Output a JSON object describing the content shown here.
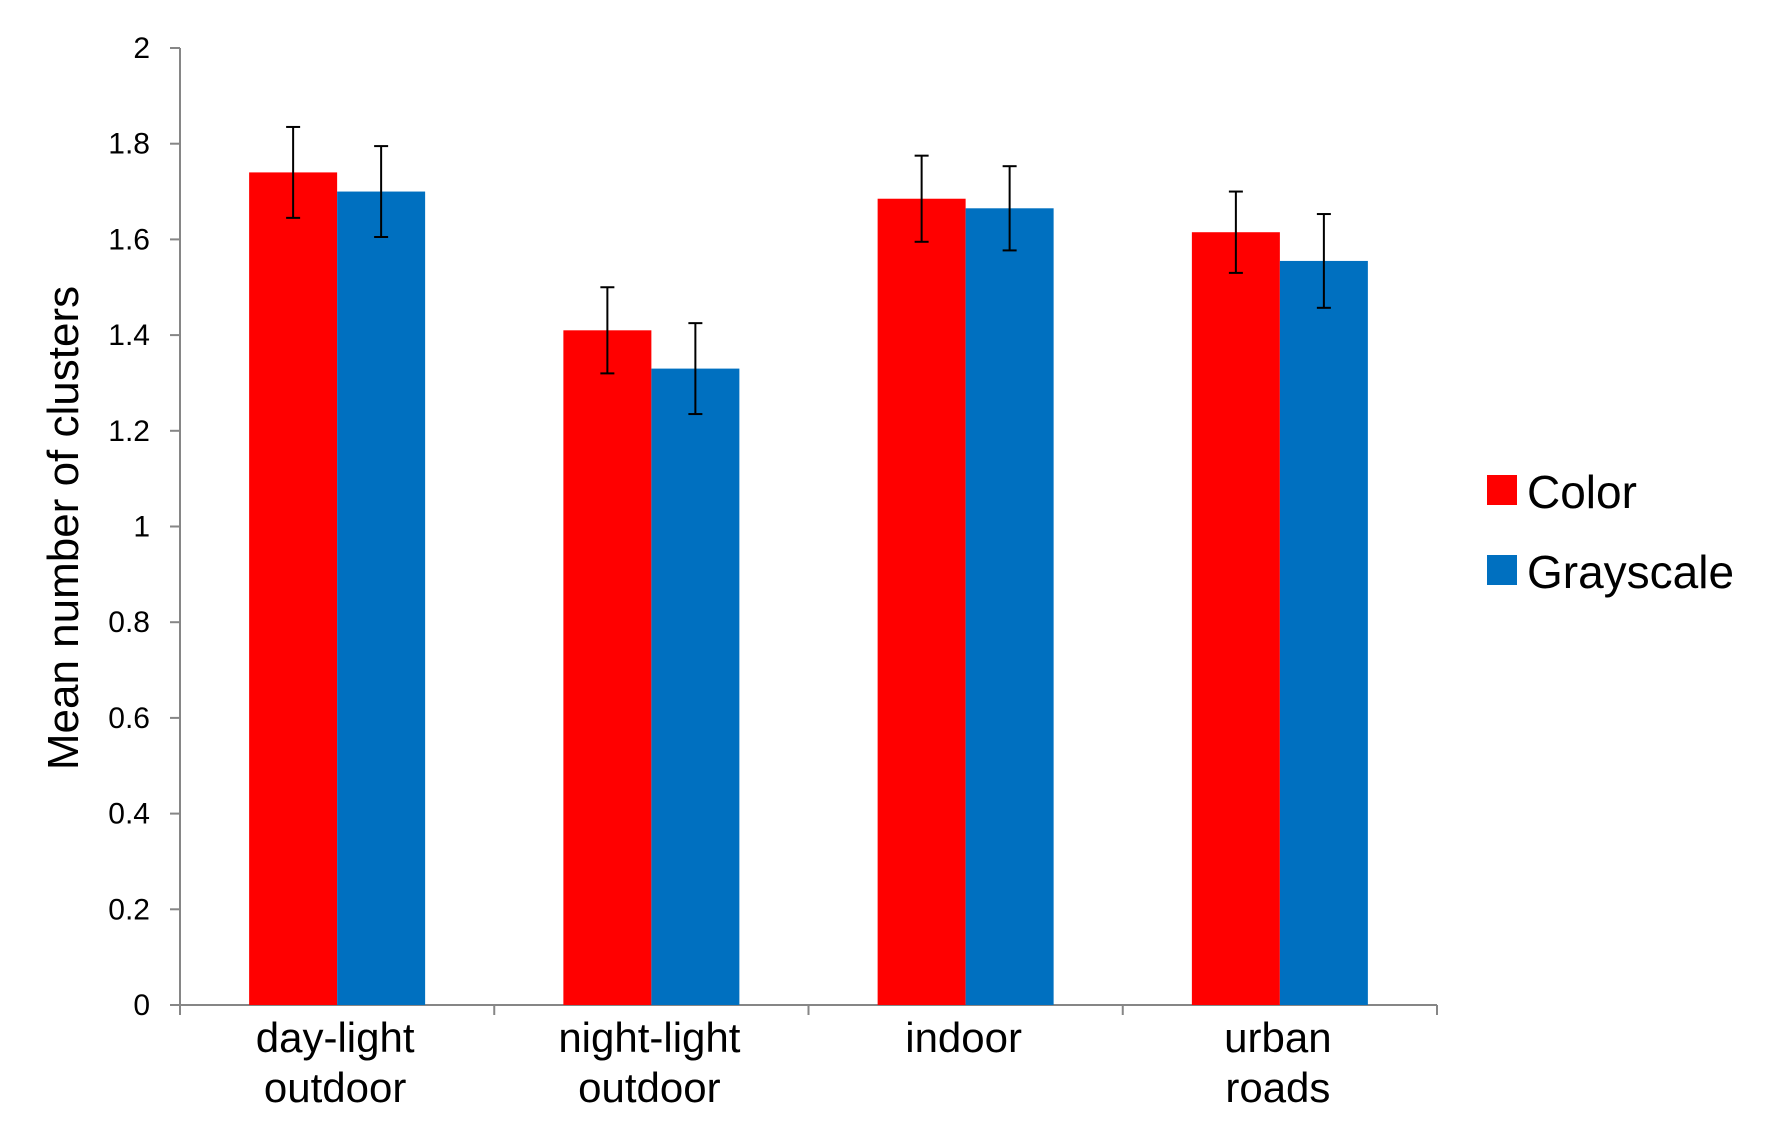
{
  "chart_data": {
    "type": "bar",
    "title": "",
    "xlabel": "",
    "ylabel": "Mean number of clusters",
    "ylim": [
      0,
      2
    ],
    "yticks": [
      "0",
      "0.2",
      "0.4",
      "0.6",
      "0.8",
      "1",
      "1.2",
      "1.4",
      "1.6",
      "1.8",
      "2"
    ],
    "categories": [
      [
        "day-light",
        "outdoor"
      ],
      [
        "night-light",
        "outdoor"
      ],
      [
        "indoor"
      ],
      [
        "urban",
        "roads"
      ]
    ],
    "series": [
      {
        "name": "Color",
        "color": "#ff0000",
        "values": [
          1.74,
          1.41,
          1.685,
          1.615
        ],
        "errors": [
          0.095,
          0.09,
          0.09,
          0.085
        ]
      },
      {
        "name": "Grayscale",
        "color": "#0070c0",
        "values": [
          1.7,
          1.33,
          1.665,
          1.555
        ],
        "errors": [
          0.095,
          0.095,
          0.088,
          0.098
        ]
      }
    ],
    "legend": "right",
    "grid": false
  }
}
